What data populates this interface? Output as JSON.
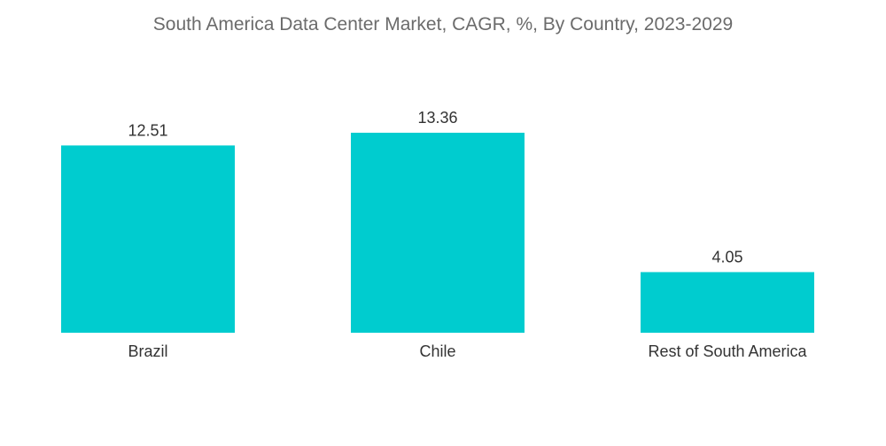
{
  "chart_data": {
    "type": "bar",
    "title": "South America Data Center Market, CAGR, %, By Country, 2023-2029",
    "categories": [
      "Brazil",
      "Chile",
      "Rest of South America"
    ],
    "values": [
      12.51,
      13.36,
      4.05
    ],
    "value_labels": [
      "12.51",
      "13.36",
      "4.05"
    ],
    "xlabel": "",
    "ylabel": "",
    "ylim": [
      0,
      13.36
    ],
    "grid": false,
    "legend": "none",
    "bar_color": "#00CCCF"
  }
}
